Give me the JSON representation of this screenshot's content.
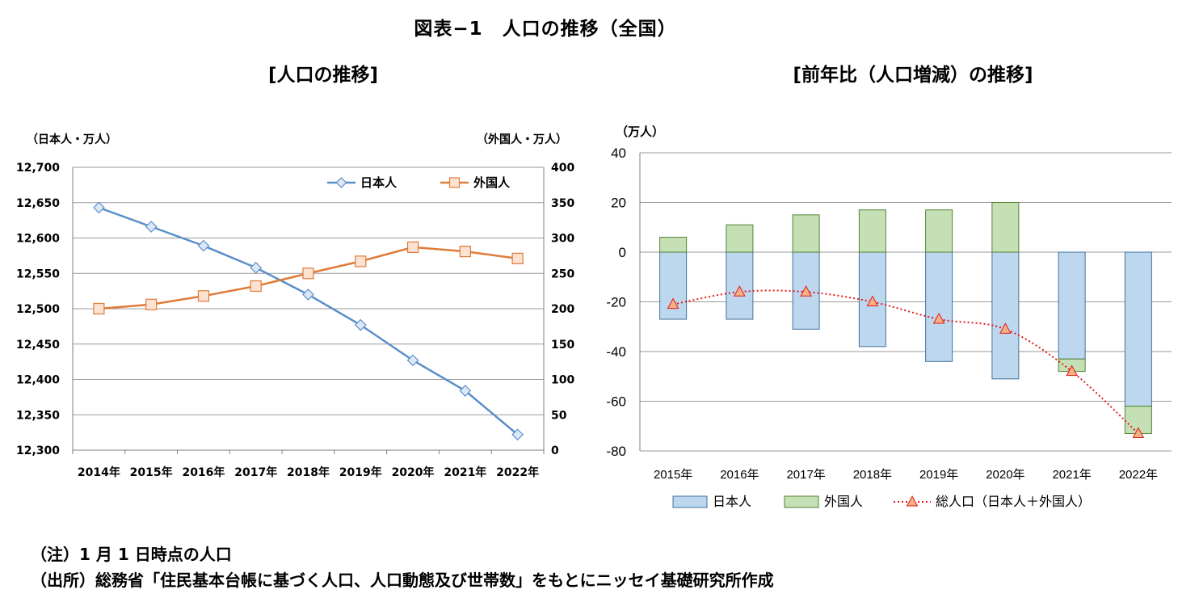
{
  "figure": {
    "title": "図表−1　人口の推移（全国）",
    "notes": [
      "（注）1 月 1 日時点の人口",
      "（出所）総務省「住民基本台帳に基づく人口、人口動態及び世帯数」をもとにニッセイ基礎研究所作成"
    ]
  },
  "colors": {
    "japanese_line": "#5a8ec9",
    "japanese_marker_fill": "#dce8f6",
    "foreign_line": "#e07b39",
    "foreign_marker_fill": "#fbe2d3",
    "bar_japanese": "#bdd7ee",
    "bar_japanese_stroke": "#41719c",
    "bar_foreign": "#c5e0b4",
    "bar_foreign_stroke": "#548235",
    "total_line": "#e41a1c",
    "total_marker_fill": "#f4b183",
    "grid": "#9a9a9a"
  },
  "chart_data": [
    {
      "type": "line",
      "title": "[人口の推移]",
      "categories": [
        "2014年",
        "2015年",
        "2016年",
        "2017年",
        "2018年",
        "2019年",
        "2020年",
        "2021年",
        "2022年"
      ],
      "ylabel_left": "（日本人・万人）",
      "ylabel_right": "（外国人・万人）",
      "ylim_left": [
        12300,
        12700
      ],
      "ylim_right": [
        0,
        400
      ],
      "yticks_left": [
        "12,300",
        "12,350",
        "12,400",
        "12,450",
        "12,500",
        "12,550",
        "12,600",
        "12,650",
        "12,700"
      ],
      "yticks_right": [
        "0",
        "50",
        "100",
        "150",
        "200",
        "250",
        "300",
        "350",
        "400"
      ],
      "legend_position": "top-right",
      "series": [
        {
          "name": "日本人",
          "axis": "left",
          "marker": "diamond",
          "values": [
            12643,
            12616,
            12589,
            12558,
            12520,
            12477,
            12427,
            12384,
            12322
          ]
        },
        {
          "name": "外国人",
          "axis": "right",
          "marker": "square",
          "values": [
            200,
            206,
            218,
            232,
            250,
            267,
            287,
            281,
            271
          ]
        }
      ]
    },
    {
      "type": "bar",
      "title": "[前年比（人口増減）の推移]",
      "categories": [
        "2015年",
        "2016年",
        "2017年",
        "2018年",
        "2019年",
        "2020年",
        "2021年",
        "2022年"
      ],
      "ylabel": "（万人）",
      "ylim": [
        -80,
        40
      ],
      "yticks": [
        "-80",
        "-60",
        "-40",
        "-20",
        "0",
        "20",
        "40"
      ],
      "legend_position": "bottom",
      "series": [
        {
          "name": "日本人",
          "kind": "stacked-bar",
          "values": [
            -27,
            -27,
            -31,
            -38,
            -44,
            -51,
            -43,
            -62
          ]
        },
        {
          "name": "外国人",
          "kind": "stacked-bar",
          "values": [
            6,
            11,
            15,
            17,
            17,
            20,
            -5,
            -11
          ]
        },
        {
          "name": "総人口（日本人＋外国人）",
          "kind": "line",
          "values": [
            -21,
            -16,
            -16,
            -20,
            -27,
            -31,
            -48,
            -73
          ]
        }
      ]
    }
  ]
}
